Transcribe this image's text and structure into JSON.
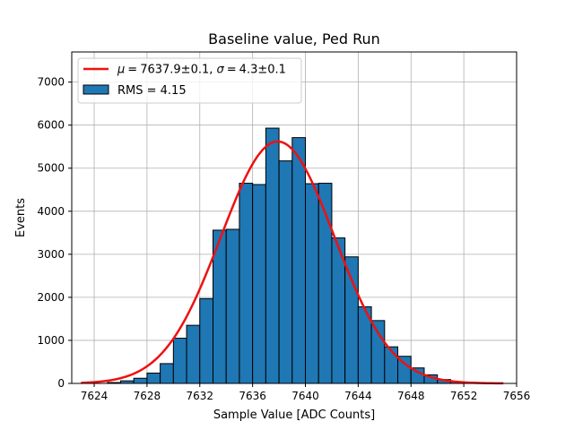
{
  "chart_data": {
    "type": "bar",
    "title": "Baseline value, Ped Run",
    "xlabel": "Sample Value [ADC Counts]",
    "ylabel": "Events",
    "xlim": [
      7622.3,
      7656.0
    ],
    "ylim": [
      0,
      7700
    ],
    "xticks": [
      7624,
      7628,
      7632,
      7636,
      7640,
      7644,
      7648,
      7652,
      7656
    ],
    "yticks": [
      0,
      1000,
      2000,
      3000,
      4000,
      5000,
      6000,
      7000
    ],
    "grid": true,
    "legend_position": "top-left",
    "bin_width": 1,
    "bin_edges_start": 7625,
    "series": [
      {
        "name": "RMS = 4.15",
        "color": "#1f77b4",
        "edgecolor": "#000000",
        "values": [
          20,
          60,
          120,
          240,
          460,
          1050,
          1350,
          1970,
          3560,
          3580,
          4650,
          4620,
          5930,
          5170,
          5710,
          4640,
          4650,
          3380,
          2940,
          1780,
          1460,
          850,
          630,
          360,
          200,
          90,
          40,
          20
        ]
      }
    ],
    "fit": {
      "label": "μ = 7637.9±0.1, σ = 4.3±0.1",
      "label_parts": {
        "mu": "μ",
        "mu_value": "7637.9±0.1",
        "sigma": "σ",
        "sigma_value": "4.3±0.1",
        "equals": "="
      },
      "color": "#ee1111",
      "mu": 7637.9,
      "sigma": 4.3,
      "amplitude": 5620,
      "x_range": [
        7623,
        7655
      ]
    }
  }
}
